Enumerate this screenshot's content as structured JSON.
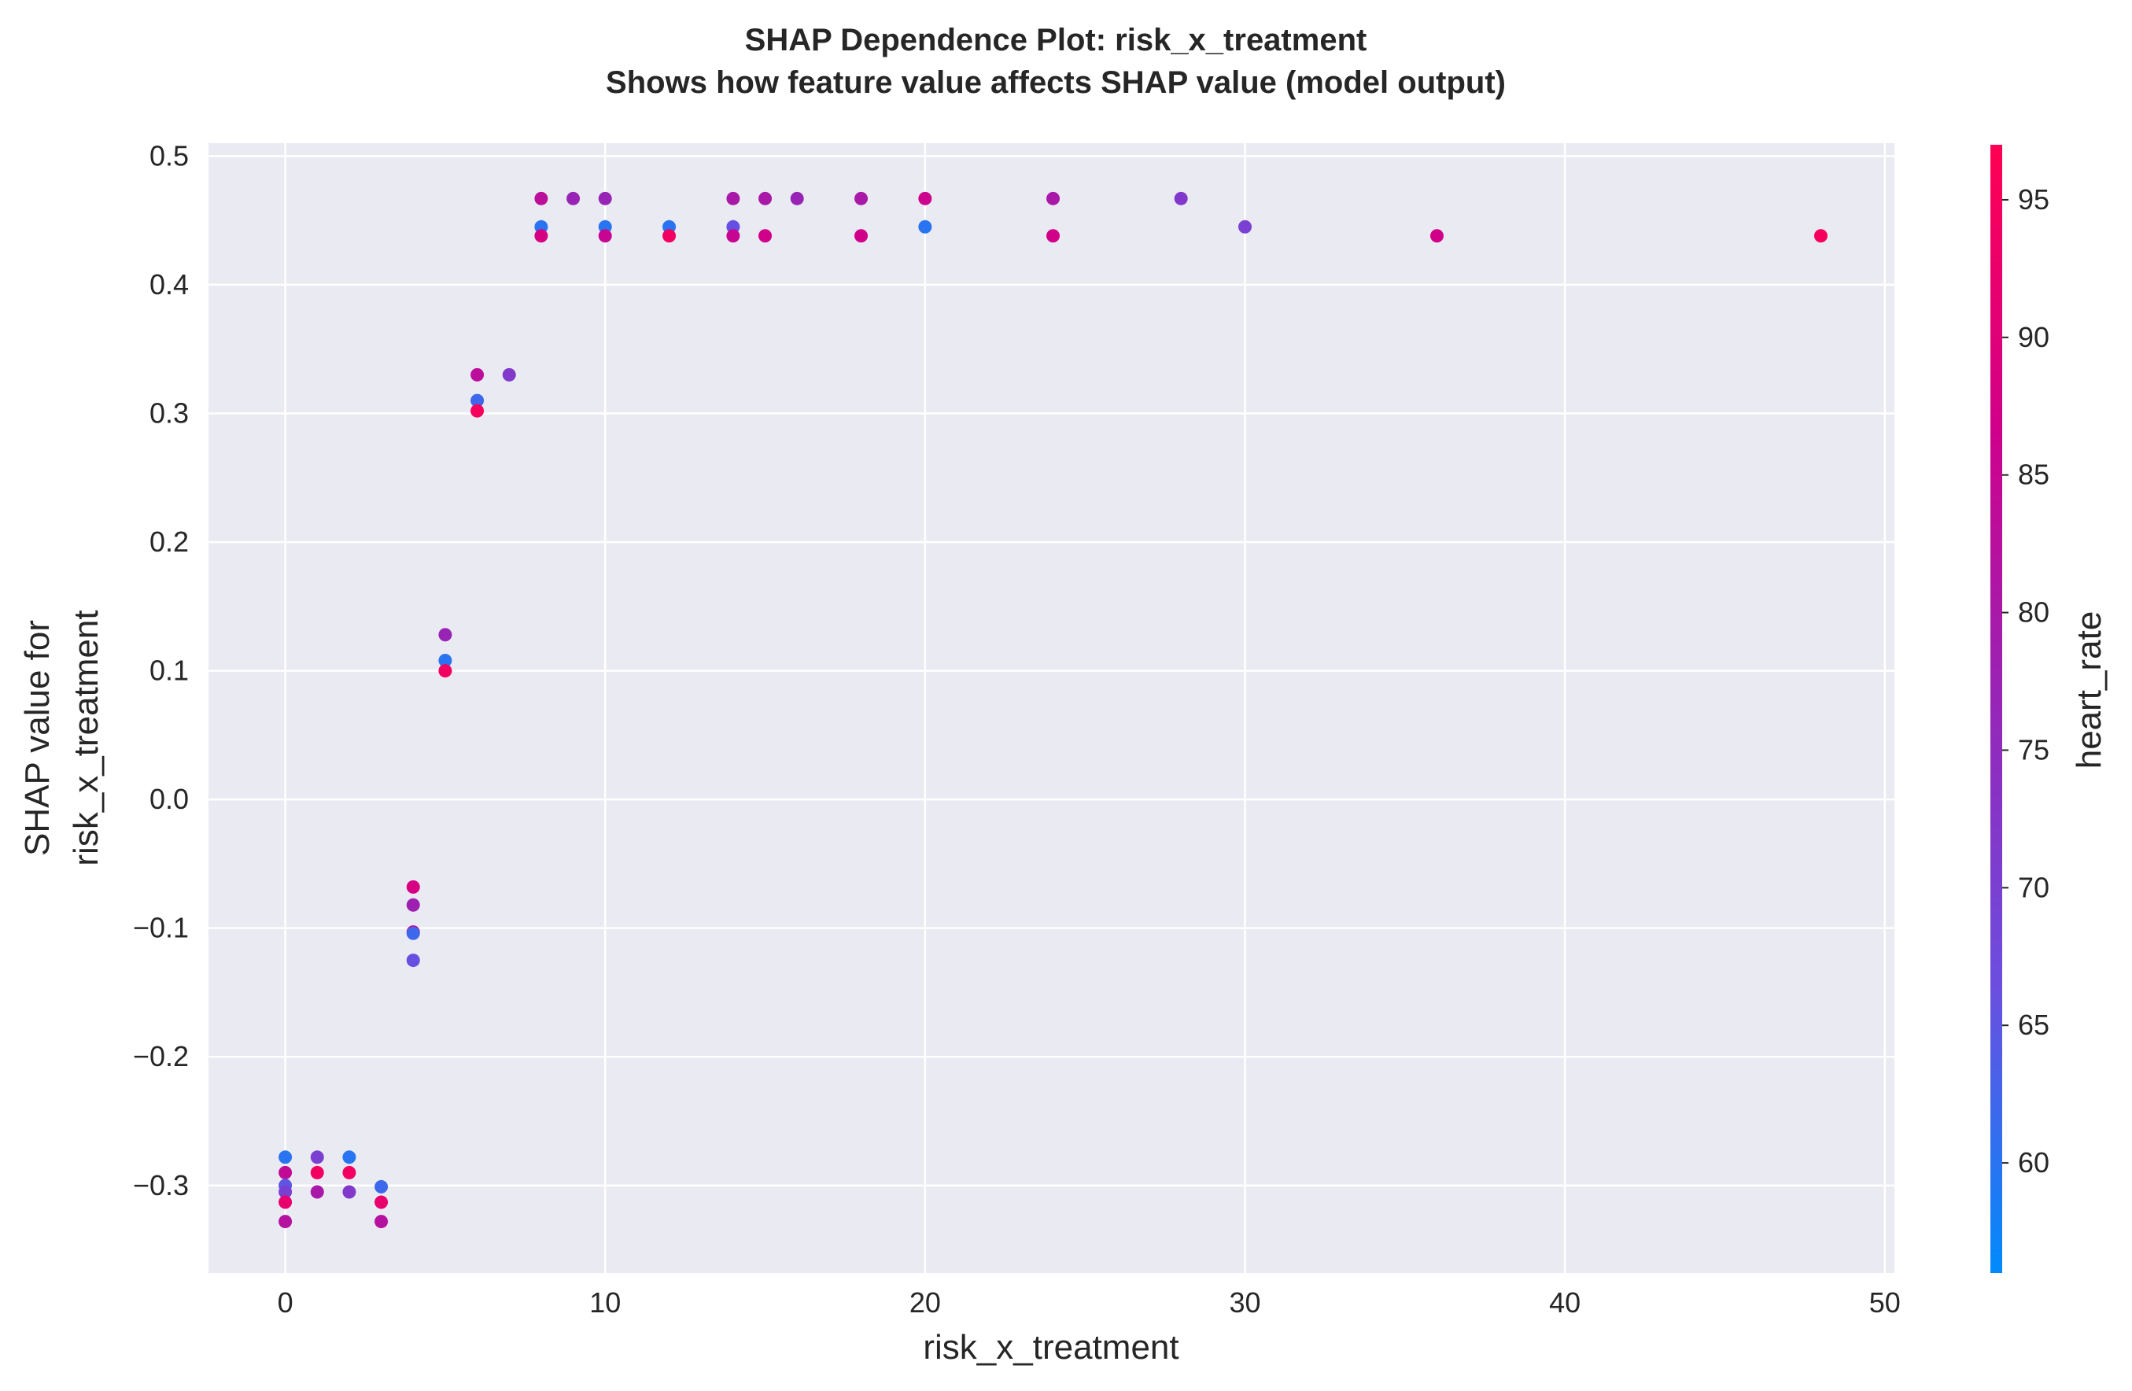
{
  "chart_data": {
    "type": "scatter",
    "title": "SHAP Dependence Plot: risk_x_treatment",
    "subtitle": "Shows how feature value affects SHAP value (model output)",
    "xlabel": "risk_x_treatment",
    "ylabel_lines": [
      "SHAP value for",
      "risk_x_treatment"
    ],
    "xlim": [
      -2.4,
      50.3
    ],
    "ylim": [
      -0.368,
      0.51
    ],
    "x_ticks": [
      0,
      10,
      20,
      30,
      40,
      50
    ],
    "x_tick_labels": [
      "0",
      "10",
      "20",
      "30",
      "40",
      "50"
    ],
    "y_ticks": [
      -0.3,
      -0.2,
      -0.1,
      0.0,
      0.1,
      0.2,
      0.3,
      0.4,
      0.5
    ],
    "y_tick_labels": [
      "−0.3",
      "−0.2",
      "−0.1",
      "0.0",
      "0.1",
      "0.2",
      "0.3",
      "0.4",
      "0.5"
    ],
    "grid": true,
    "background": "#eaeaf2",
    "colorbar": {
      "label": "heart_rate",
      "range": [
        56,
        97
      ],
      "ticks": [
        60,
        65,
        70,
        75,
        80,
        85,
        90,
        95
      ],
      "tick_labels": [
        "60",
        "65",
        "70",
        "75",
        "80",
        "85",
        "90",
        "95"
      ],
      "colormap": [
        "#008bfb",
        "#6a4fe0",
        "#9526b8",
        "#d0008a",
        "#ff0052"
      ]
    },
    "points": [
      {
        "x": 0,
        "y": -0.278,
        "c": 60
      },
      {
        "x": 0,
        "y": -0.29,
        "c": 84
      },
      {
        "x": 0,
        "y": -0.3,
        "c": 65
      },
      {
        "x": 0,
        "y": -0.305,
        "c": 70
      },
      {
        "x": 0,
        "y": -0.313,
        "c": 92
      },
      {
        "x": 0,
        "y": -0.328,
        "c": 82
      },
      {
        "x": 1,
        "y": -0.278,
        "c": 70
      },
      {
        "x": 1,
        "y": -0.29,
        "c": 94
      },
      {
        "x": 1,
        "y": -0.305,
        "c": 80
      },
      {
        "x": 2,
        "y": -0.278,
        "c": 60
      },
      {
        "x": 2,
        "y": -0.29,
        "c": 94
      },
      {
        "x": 2,
        "y": -0.305,
        "c": 72
      },
      {
        "x": 3,
        "y": -0.301,
        "c": 62
      },
      {
        "x": 3,
        "y": -0.313,
        "c": 92
      },
      {
        "x": 3,
        "y": -0.328,
        "c": 82
      },
      {
        "x": 4,
        "y": -0.068,
        "c": 88
      },
      {
        "x": 4,
        "y": -0.082,
        "c": 78
      },
      {
        "x": 4,
        "y": -0.103,
        "c": 85
      },
      {
        "x": 4,
        "y": -0.104,
        "c": 62
      },
      {
        "x": 4,
        "y": -0.125,
        "c": 66
      },
      {
        "x": 5,
        "y": 0.128,
        "c": 77
      },
      {
        "x": 5,
        "y": 0.108,
        "c": 60
      },
      {
        "x": 5,
        "y": 0.1,
        "c": 94
      },
      {
        "x": 6,
        "y": 0.33,
        "c": 83
      },
      {
        "x": 6,
        "y": 0.31,
        "c": 62
      },
      {
        "x": 6,
        "y": 0.302,
        "c": 95
      },
      {
        "x": 7,
        "y": 0.33,
        "c": 72
      },
      {
        "x": 8,
        "y": 0.467,
        "c": 83
      },
      {
        "x": 8,
        "y": 0.445,
        "c": 60
      },
      {
        "x": 8,
        "y": 0.438,
        "c": 88
      },
      {
        "x": 9,
        "y": 0.467,
        "c": 77
      },
      {
        "x": 10,
        "y": 0.467,
        "c": 77
      },
      {
        "x": 10,
        "y": 0.445,
        "c": 60
      },
      {
        "x": 10,
        "y": 0.438,
        "c": 85
      },
      {
        "x": 12,
        "y": 0.445,
        "c": 60
      },
      {
        "x": 12,
        "y": 0.438,
        "c": 94
      },
      {
        "x": 14,
        "y": 0.467,
        "c": 80
      },
      {
        "x": 14,
        "y": 0.445,
        "c": 66
      },
      {
        "x": 14,
        "y": 0.438,
        "c": 85
      },
      {
        "x": 15,
        "y": 0.467,
        "c": 80
      },
      {
        "x": 15,
        "y": 0.438,
        "c": 87
      },
      {
        "x": 16,
        "y": 0.467,
        "c": 77
      },
      {
        "x": 18,
        "y": 0.467,
        "c": 80
      },
      {
        "x": 18,
        "y": 0.438,
        "c": 87
      },
      {
        "x": 20,
        "y": 0.467,
        "c": 86
      },
      {
        "x": 20,
        "y": 0.445,
        "c": 60
      },
      {
        "x": 24,
        "y": 0.467,
        "c": 80
      },
      {
        "x": 24,
        "y": 0.438,
        "c": 87
      },
      {
        "x": 28,
        "y": 0.467,
        "c": 72
      },
      {
        "x": 30,
        "y": 0.445,
        "c": 70
      },
      {
        "x": 36,
        "y": 0.438,
        "c": 87
      },
      {
        "x": 48,
        "y": 0.438,
        "c": 95
      }
    ]
  }
}
